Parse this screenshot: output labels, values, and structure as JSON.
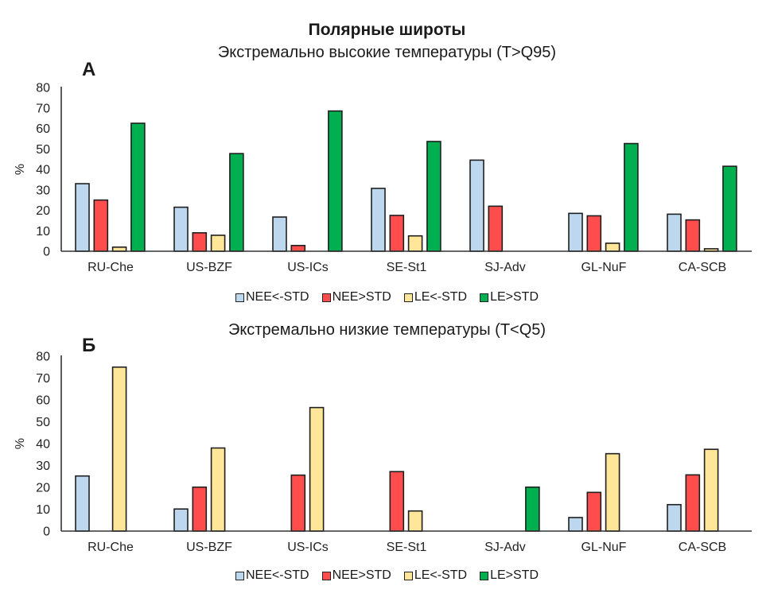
{
  "title": "Полярные широты",
  "colors": {
    "NEE<-STD": "#bdd7ee",
    "NEE>STD": "#ff4d4d",
    "LE<-STD": "#ffe699",
    "LE>STD": "#00b050"
  },
  "chart_data": [
    {
      "type": "bar",
      "panel": "А",
      "title": "Экстремально высокие температуры (T>Q95)",
      "xlabel": "",
      "ylabel": "%",
      "ylim": [
        0,
        80
      ],
      "yticks": [
        0,
        10,
        20,
        30,
        40,
        50,
        60,
        70,
        80
      ],
      "grid": false,
      "legend_position": "bottom",
      "categories": [
        "RU-Che",
        "US-BZF",
        "US-ICs",
        "SE-St1",
        "SJ-Adv",
        "GL-NuF",
        "CA-SCB"
      ],
      "series": [
        {
          "name": "NEE<-STD",
          "values": [
            33,
            21.5,
            16.7,
            30.7,
            44.5,
            18.5,
            18.1
          ]
        },
        {
          "name": "NEE>STD",
          "values": [
            25,
            9,
            2.8,
            17.5,
            22,
            17.3,
            15.3
          ]
        },
        {
          "name": "LE<-STD",
          "values": [
            2,
            7.8,
            0,
            7.5,
            0,
            3.9,
            1.2
          ]
        },
        {
          "name": "LE>STD",
          "values": [
            62.5,
            47.7,
            68.5,
            53.6,
            0,
            52.6,
            41.5
          ]
        }
      ]
    },
    {
      "type": "bar",
      "panel": "Б",
      "title": "Экстремально низкие температуры (T<Q5)",
      "xlabel": "",
      "ylabel": "%",
      "ylim": [
        0,
        80
      ],
      "yticks": [
        0,
        10,
        20,
        30,
        40,
        50,
        60,
        70,
        80
      ],
      "grid": false,
      "legend_position": "bottom",
      "categories": [
        "RU-Che",
        "US-BZF",
        "US-ICs",
        "SE-St1",
        "SJ-Adv",
        "GL-NuF",
        "CA-SCB"
      ],
      "series": [
        {
          "name": "NEE<-STD",
          "values": [
            25.2,
            10.1,
            0,
            0,
            0,
            6.2,
            12.1
          ]
        },
        {
          "name": "NEE>STD",
          "values": [
            0,
            20.1,
            25.6,
            27.2,
            0,
            17.7,
            25.7
          ]
        },
        {
          "name": "LE<-STD",
          "values": [
            75,
            38,
            56.5,
            9.2,
            0,
            35.4,
            37.4
          ]
        },
        {
          "name": "LE>STD",
          "values": [
            0,
            0,
            0,
            0,
            20.1,
            0,
            0
          ]
        }
      ]
    }
  ]
}
